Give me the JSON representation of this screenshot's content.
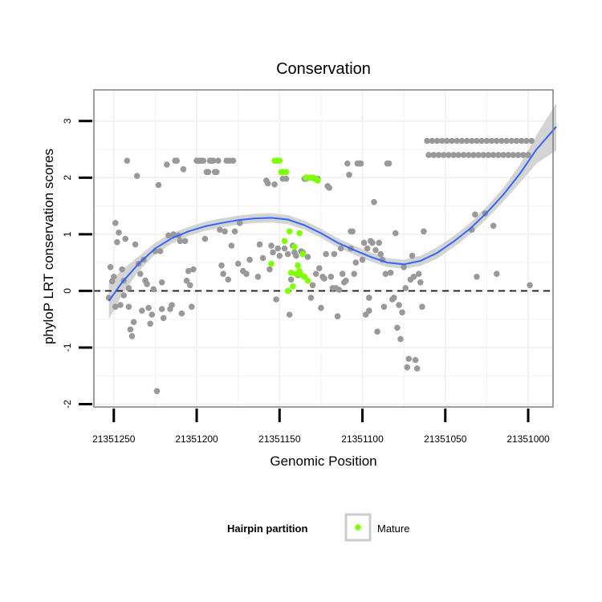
{
  "chart_data": {
    "type": "scatter",
    "title": "Conservation",
    "xlabel": "Genomic Position",
    "ylabel": "phyloP LRT conservation scores",
    "x_reversed": true,
    "xlim": [
      21351262,
      21350985
    ],
    "ylim": [
      -2.05,
      3.55
    ],
    "x_ticks": [
      21351250,
      21351200,
      21351150,
      21351100,
      21351050,
      21351000
    ],
    "x_tick_labels": [
      "21351250",
      "21351200",
      "21351150",
      "21351100",
      "21351050",
      "21351000"
    ],
    "y_ticks": [
      -2,
      -1,
      0,
      1,
      2,
      3
    ],
    "y_tick_labels": [
      "-2",
      "-1",
      "0",
      "1",
      "2",
      "3"
    ],
    "grid": true,
    "reference_line": {
      "y": 0,
      "style": "dashed"
    },
    "legend": {
      "title": "Hairpin partition",
      "placement": "bottom",
      "entries": [
        {
          "label": "Mature",
          "color": "#7fff00"
        }
      ]
    },
    "colors": {
      "other": "#999999",
      "mature": "#7fff00",
      "smooth": "#3366ff",
      "band": "#cccccc",
      "panel_border": "#7f7f7f",
      "grid": "#f2f2f2"
    },
    "series": [
      {
        "name": "",
        "color": "#999999",
        "points": [
          [
            21351253,
            -0.12
          ],
          [
            21351252,
            0.42
          ],
          [
            21351251,
            0.17
          ],
          [
            21351250,
            0.25
          ],
          [
            21351249,
            -0.28
          ],
          [
            21351249,
            1.2
          ],
          [
            21351248,
            0.86
          ],
          [
            21351247,
            1.03
          ],
          [
            21351246,
            -0.25
          ],
          [
            21351245,
            0.38
          ],
          [
            21351244,
            0.18
          ],
          [
            21351244,
            -0.08
          ],
          [
            21351243,
            0.92
          ],
          [
            21351242,
            2.3
          ],
          [
            21351241,
            -0.28
          ],
          [
            21351241,
            0.05
          ],
          [
            21351240,
            -0.68
          ],
          [
            21351239,
            -0.8
          ],
          [
            21351238,
            -0.55
          ],
          [
            21351237,
            0.82
          ],
          [
            21351236,
            2.03
          ],
          [
            21351235,
            0.48
          ],
          [
            21351234,
            0.3
          ],
          [
            21351233,
            -0.35
          ],
          [
            21351232,
            0.55
          ],
          [
            21351231,
            0.18
          ],
          [
            21351230,
            0.12
          ],
          [
            21351229,
            -0.3
          ],
          [
            21351228,
            -0.58
          ],
          [
            21351227,
            -0.42
          ],
          [
            21351226,
            0.03
          ],
          [
            21351225,
            0.7
          ],
          [
            21351224,
            -1.77
          ],
          [
            21351223,
            1.87
          ],
          [
            21351222,
            0.7
          ],
          [
            21351221,
            0.15
          ],
          [
            21351221,
            -0.32
          ],
          [
            21351220,
            -0.48
          ],
          [
            21351218,
            2.23
          ],
          [
            21351217,
            0.98
          ],
          [
            21351216,
            -0.32
          ],
          [
            21351215,
            -0.25
          ],
          [
            21351214,
            1.0
          ],
          [
            21351213,
            2.3
          ],
          [
            21351212,
            2.3
          ],
          [
            21351211,
            0.98
          ],
          [
            21351210,
            0.88
          ],
          [
            21351209,
            -0.4
          ],
          [
            21351208,
            2.15
          ],
          [
            21351207,
            0.88
          ],
          [
            21351206,
            0.18
          ],
          [
            21351205,
            0.35
          ],
          [
            21351204,
            0.1
          ],
          [
            21351203,
            -0.28
          ],
          [
            21351202,
            0.38
          ],
          [
            21351200,
            2.3
          ],
          [
            21351199,
            2.3
          ],
          [
            21351198,
            2.3
          ],
          [
            21351197,
            2.3
          ],
          [
            21351196,
            2.3
          ],
          [
            21351195,
            0.92
          ],
          [
            21351194,
            2.1
          ],
          [
            21351193,
            2.1
          ],
          [
            21351192,
            2.3
          ],
          [
            21351191,
            2.3
          ],
          [
            21351190,
            2.3
          ],
          [
            21351189,
            2.1
          ],
          [
            21351188,
            2.1
          ],
          [
            21351187,
            2.3
          ],
          [
            21351186,
            1.08
          ],
          [
            21351185,
            0.45
          ],
          [
            21351184,
            0.3
          ],
          [
            21351183,
            1.05
          ],
          [
            21351182,
            2.3
          ],
          [
            21351181,
            0.2
          ],
          [
            21351180,
            2.3
          ],
          [
            21351179,
            0.8
          ],
          [
            21351178,
            2.3
          ],
          [
            21351177,
            1.05
          ],
          [
            21351175,
            0.48
          ],
          [
            21351174,
            1.2
          ],
          [
            21351172,
            0.35
          ],
          [
            21351170,
            0.3
          ],
          [
            21351168,
            0.55
          ],
          [
            21351163,
            0.25
          ],
          [
            21351162,
            0.82
          ],
          [
            21351160,
            0.58
          ],
          [
            21351158,
            1.95
          ],
          [
            21351157,
            1.9
          ],
          [
            21351156,
            0.38
          ],
          [
            21351155,
            0.8
          ],
          [
            21351154,
            0.68
          ],
          [
            21351153,
            1.88
          ],
          [
            21351152,
            -0.15
          ],
          [
            21351151,
            0.75
          ],
          [
            21351150,
            0.62
          ],
          [
            21351148,
            1.98
          ],
          [
            21351147,
            0.75
          ],
          [
            21351146,
            1.98
          ],
          [
            21351145,
            0.65
          ],
          [
            21351144,
            -0.42
          ],
          [
            21351143,
            0.2
          ],
          [
            21351142,
            0.8
          ],
          [
            21351141,
            0.68
          ],
          [
            21351140,
            0.62
          ],
          [
            21351139,
            0.28
          ],
          [
            21351137,
            0.7
          ],
          [
            21351136,
            0.68
          ],
          [
            21351135,
            1.98
          ],
          [
            21351134,
            1.98
          ],
          [
            21351133,
            0.6
          ],
          [
            21351131,
            -0.12
          ],
          [
            21351130,
            0.1
          ],
          [
            21351128,
            0.3
          ],
          [
            21351127,
            1.98
          ],
          [
            21351126,
            0.4
          ],
          [
            21351125,
            -0.3
          ],
          [
            21351124,
            0.25
          ],
          [
            21351123,
            0.22
          ],
          [
            21351122,
            0.65
          ],
          [
            21351121,
            1.85
          ],
          [
            21351120,
            1.82
          ],
          [
            21351119,
            0.25
          ],
          [
            21351118,
            0.05
          ],
          [
            21351117,
            0.65
          ],
          [
            21351116,
            0.05
          ],
          [
            21351115,
            -0.45
          ],
          [
            21351114,
            0.02
          ],
          [
            21351113,
            0.75
          ],
          [
            21351112,
            0.3
          ],
          [
            21351111,
            0.15
          ],
          [
            21351110,
            0.18
          ],
          [
            21351109,
            2.25
          ],
          [
            21351108,
            2.05
          ],
          [
            21351107,
            1.05
          ],
          [
            21351107,
            0.75
          ],
          [
            21351106,
            1.05
          ],
          [
            21351105,
            0.3
          ],
          [
            21351104,
            0.5
          ],
          [
            21351103,
            2.25
          ],
          [
            21351102,
            2.25
          ],
          [
            21351101,
            2.25
          ],
          [
            21351100,
            0.55
          ],
          [
            21351099,
            0.85
          ],
          [
            21351098,
            -0.42
          ],
          [
            21351097,
            0.75
          ],
          [
            21351096,
            -0.12
          ],
          [
            21351096,
            -0.35
          ],
          [
            21351095,
            0.88
          ],
          [
            21351094,
            0.85
          ],
          [
            21351093,
            1.57
          ],
          [
            21351092,
            0.72
          ],
          [
            21351091,
            -0.72
          ],
          [
            21351090,
            0.85
          ],
          [
            21351089,
            0.65
          ],
          [
            21351088,
            0.55
          ],
          [
            21351087,
            -0.28
          ],
          [
            21351086,
            0.3
          ],
          [
            21351085,
            2.25
          ],
          [
            21351084,
            2.25
          ],
          [
            21351083,
            0.32
          ],
          [
            21351082,
            -0.15
          ],
          [
            21351081,
            -0.12
          ],
          [
            21351080,
            1.02
          ],
          [
            21351079,
            -0.65
          ],
          [
            21351078,
            -0.25
          ],
          [
            21351077,
            -0.85
          ],
          [
            21351076,
            -0.38
          ],
          [
            21351075,
            0.42
          ],
          [
            21351074,
            0.05
          ],
          [
            21351073,
            -1.35
          ],
          [
            21351072,
            -1.2
          ],
          [
            21351071,
            0.2
          ],
          [
            21351070,
            0.62
          ],
          [
            21351069,
            0.25
          ],
          [
            21351068,
            -1.22
          ],
          [
            21351067,
            -1.37
          ],
          [
            21351066,
            0.3
          ],
          [
            21351065,
            0.15
          ],
          [
            21351064,
            -0.28
          ],
          [
            21351063,
            1.05
          ],
          [
            21351061,
            2.65
          ],
          [
            21351058,
            2.65
          ],
          [
            21351055,
            2.65
          ],
          [
            21351052,
            2.65
          ],
          [
            21351049,
            2.65
          ],
          [
            21351046,
            2.65
          ],
          [
            21351043,
            2.65
          ],
          [
            21351040,
            2.65
          ],
          [
            21351037,
            2.65
          ],
          [
            21351034,
            2.65
          ],
          [
            21351031,
            2.65
          ],
          [
            21351028,
            2.65
          ],
          [
            21351025,
            2.65
          ],
          [
            21351022,
            2.65
          ],
          [
            21351019,
            2.65
          ],
          [
            21351016,
            2.65
          ],
          [
            21351013,
            2.65
          ],
          [
            21351010,
            2.65
          ],
          [
            21351007,
            2.65
          ],
          [
            21351004,
            2.65
          ],
          [
            21351001,
            2.65
          ],
          [
            21350998,
            2.65
          ],
          [
            21351060,
            2.4
          ],
          [
            21351057,
            2.4
          ],
          [
            21351054,
            2.4
          ],
          [
            21351051,
            2.4
          ],
          [
            21351048,
            2.4
          ],
          [
            21351045,
            2.4
          ],
          [
            21351042,
            2.4
          ],
          [
            21351039,
            2.4
          ],
          [
            21351036,
            2.4
          ],
          [
            21351033,
            2.4
          ],
          [
            21351030,
            2.4
          ],
          [
            21351027,
            2.4
          ],
          [
            21351024,
            2.4
          ],
          [
            21351021,
            2.4
          ],
          [
            21351018,
            2.4
          ],
          [
            21351015,
            2.4
          ],
          [
            21351012,
            2.4
          ],
          [
            21351009,
            2.4
          ],
          [
            21351006,
            2.4
          ],
          [
            21351003,
            2.4
          ],
          [
            21351000,
            2.4
          ],
          [
            21351034,
            1.08
          ],
          [
            21351032,
            1.35
          ],
          [
            21351031,
            0.25
          ],
          [
            21351026,
            1.37
          ],
          [
            21351021,
            1.15
          ],
          [
            21351019,
            0.3
          ],
          [
            21350999,
            0.1
          ]
        ]
      },
      {
        "name": "Mature",
        "color": "#7fff00",
        "points": [
          [
            21351153,
            2.3
          ],
          [
            21351152,
            2.3
          ],
          [
            21351151,
            2.3
          ],
          [
            21351150,
            2.3
          ],
          [
            21351149,
            2.1
          ],
          [
            21351148,
            2.1
          ],
          [
            21351147,
            0.88
          ],
          [
            21351146,
            2.1
          ],
          [
            21351145,
            0.0
          ],
          [
            21351144,
            1.05
          ],
          [
            21351143,
            0.32
          ],
          [
            21351142,
            0.08
          ],
          [
            21351141,
            0.78
          ],
          [
            21351140,
            0.3
          ],
          [
            21351139,
            0.45
          ],
          [
            21351138,
            0.35
          ],
          [
            21351138,
            1.02
          ],
          [
            21351137,
            0.28
          ],
          [
            21351136,
            0.65
          ],
          [
            21351135,
            0.25
          ],
          [
            21351134,
            2.0
          ],
          [
            21351133,
            0.18
          ],
          [
            21351132,
            2.0
          ],
          [
            21351131,
            2.0
          ],
          [
            21351130,
            2.0
          ],
          [
            21351129,
            1.98
          ],
          [
            21351128,
            1.98
          ],
          [
            21351127,
            1.95
          ],
          [
            21351155,
            0.48
          ]
        ]
      }
    ],
    "smooth_curve": [
      [
        21351253,
        -0.18
      ],
      [
        21351245,
        0.15
      ],
      [
        21351235,
        0.48
      ],
      [
        21351225,
        0.75
      ],
      [
        21351215,
        0.93
      ],
      [
        21351205,
        1.05
      ],
      [
        21351195,
        1.14
      ],
      [
        21351185,
        1.2
      ],
      [
        21351175,
        1.25
      ],
      [
        21351165,
        1.28
      ],
      [
        21351155,
        1.29
      ],
      [
        21351145,
        1.26
      ],
      [
        21351135,
        1.16
      ],
      [
        21351125,
        1.02
      ],
      [
        21351115,
        0.85
      ],
      [
        21351105,
        0.72
      ],
      [
        21351095,
        0.6
      ],
      [
        21351085,
        0.5
      ],
      [
        21351075,
        0.47
      ],
      [
        21351065,
        0.53
      ],
      [
        21351055,
        0.67
      ],
      [
        21351045,
        0.87
      ],
      [
        21351035,
        1.1
      ],
      [
        21351025,
        1.38
      ],
      [
        21351015,
        1.7
      ],
      [
        21351005,
        2.07
      ],
      [
        21350995,
        2.5
      ],
      [
        21350983,
        2.9
      ]
    ],
    "smooth_band_halfwidth": [
      0.32,
      0.22,
      0.13,
      0.1,
      0.09,
      0.08,
      0.08,
      0.08,
      0.08,
      0.08,
      0.08,
      0.08,
      0.08,
      0.08,
      0.08,
      0.08,
      0.08,
      0.08,
      0.08,
      0.09,
      0.1,
      0.1,
      0.1,
      0.11,
      0.12,
      0.16,
      0.25,
      0.42
    ]
  }
}
